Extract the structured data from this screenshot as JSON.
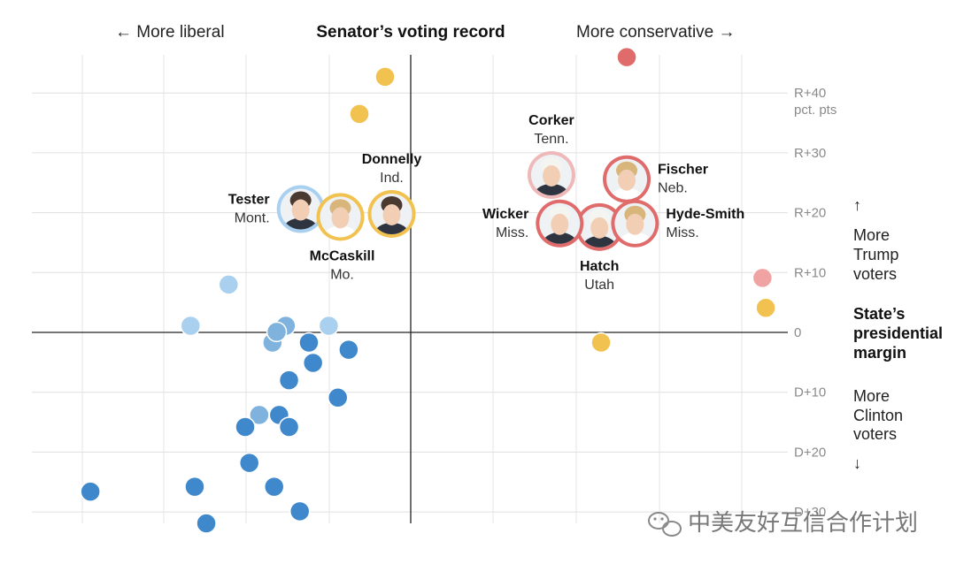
{
  "chart_data": {
    "type": "scatter",
    "title": "Senator’s voting record",
    "xlabel_left": "← More liberal",
    "xlabel_right": "More conservative →",
    "ylabel": "State’s presidential margin",
    "ylabel_up": "More Trump voters",
    "ylabel_down": "More Clinton voters",
    "up_arrow": "↑",
    "down_arrow": "↓",
    "ylim": [
      -32,
      47
    ],
    "xlim": [
      -46,
      46
    ],
    "y_ticks": [
      {
        "value": 40,
        "label": "R+40",
        "sub": "pct. pts"
      },
      {
        "value": 30,
        "label": "R+30"
      },
      {
        "value": 20,
        "label": "R+20"
      },
      {
        "value": 10,
        "label": "R+10"
      },
      {
        "value": 0,
        "label": "0"
      },
      {
        "value": -10,
        "label": "D+10"
      },
      {
        "value": -20,
        "label": "D+20"
      },
      {
        "value": -30,
        "label": "D+30"
      }
    ],
    "colors": {
      "dem": "#3f88cc",
      "dem_light": "#a9d0ee",
      "dem_mid": "#7fb2dd",
      "rep": "#e06b6b",
      "rep_light": "#f0a3a3",
      "independent_highlight": "#f2c250",
      "axis": "#222222",
      "grid": "#e3e3e3"
    },
    "points": [
      {
        "x": 26.1,
        "y": 46.0,
        "party": "rep"
      },
      {
        "x": -3.1,
        "y": 42.7,
        "party": "gold"
      },
      {
        "x": -6.2,
        "y": 36.5,
        "party": "gold"
      },
      {
        "x": 42.5,
        "y": 9.1,
        "party": "rep_light"
      },
      {
        "x": 42.9,
        "y": 4.1,
        "party": "gold"
      },
      {
        "x": 23.0,
        "y": -1.7,
        "party": "gold"
      },
      {
        "x": -22.0,
        "y": 8.0,
        "party": "dem_light"
      },
      {
        "x": -26.6,
        "y": 1.1,
        "party": "dem_light"
      },
      {
        "x": -15.1,
        "y": 1.1,
        "party": "dem_mid"
      },
      {
        "x": -9.9,
        "y": 1.1,
        "party": "dem_light"
      },
      {
        "x": -16.7,
        "y": -1.7,
        "party": "dem_mid"
      },
      {
        "x": -16.2,
        "y": 0.1,
        "party": "dem_mid"
      },
      {
        "x": -12.3,
        "y": -1.7,
        "party": "dem"
      },
      {
        "x": -7.5,
        "y": -2.9,
        "party": "dem"
      },
      {
        "x": -11.8,
        "y": -5.1,
        "party": "dem"
      },
      {
        "x": -14.7,
        "y": -8.0,
        "party": "dem"
      },
      {
        "x": -8.8,
        "y": -10.9,
        "party": "dem"
      },
      {
        "x": -18.3,
        "y": -13.8,
        "party": "dem_mid"
      },
      {
        "x": -15.9,
        "y": -13.8,
        "party": "dem"
      },
      {
        "x": -14.7,
        "y": -15.8,
        "party": "dem"
      },
      {
        "x": -20.0,
        "y": -15.8,
        "party": "dem"
      },
      {
        "x": -19.5,
        "y": -21.8,
        "party": "dem"
      },
      {
        "x": -26.1,
        "y": -25.8,
        "party": "dem"
      },
      {
        "x": -16.5,
        "y": -25.8,
        "party": "dem"
      },
      {
        "x": -38.7,
        "y": -26.6,
        "party": "dem"
      },
      {
        "x": -13.4,
        "y": -29.9,
        "party": "dem"
      },
      {
        "x": -24.7,
        "y": -31.9,
        "party": "dem"
      }
    ],
    "senators": [
      {
        "name": "Tester",
        "state": "Mont.",
        "x": -13.3,
        "y": 20.6,
        "ring": "#a9d0ee",
        "label_pos": "left",
        "hair": "d",
        "shirt": "d"
      },
      {
        "name": "McCaskill",
        "state": "Mo.",
        "x": -8.5,
        "y": 19.3,
        "ring": "#f2c250",
        "label_pos": "below",
        "hair": "b",
        "shirt": "w"
      },
      {
        "name": "Donnelly",
        "state": "Ind.",
        "x": -2.3,
        "y": 19.8,
        "ring": "#f2c250",
        "label_pos": "above",
        "hair": "d",
        "shirt": "d"
      },
      {
        "name": "Corker",
        "state": "Tenn.",
        "x": 17.0,
        "y": 26.3,
        "ring": "#f0b9b9",
        "label_pos": "above",
        "hair": "w",
        "shirt": "d"
      },
      {
        "name": "Fischer",
        "state": "Neb.",
        "x": 26.1,
        "y": 25.6,
        "ring": "#e06b6b",
        "label_pos": "right",
        "hair": "b",
        "shirt": "w"
      },
      {
        "name": "Hatch",
        "state": "Utah",
        "x": 22.8,
        "y": 17.6,
        "ring": "#e06b6b",
        "label_pos": "below",
        "hair": "w",
        "shirt": "d"
      },
      {
        "name": "Wicker",
        "state": "Miss.",
        "x": 18.0,
        "y": 18.2,
        "ring": "#e06b6b",
        "label_pos": "left",
        "hair": "w",
        "shirt": "d"
      },
      {
        "name": "Hyde-Smith",
        "state": "Miss.",
        "x": 27.1,
        "y": 18.2,
        "ring": "#e06b6b",
        "label_pos": "right",
        "hair": "b",
        "shirt": "w"
      }
    ]
  },
  "watermark": {
    "text": "中美友好互信合作计划",
    "icon": "wechat-icon"
  }
}
